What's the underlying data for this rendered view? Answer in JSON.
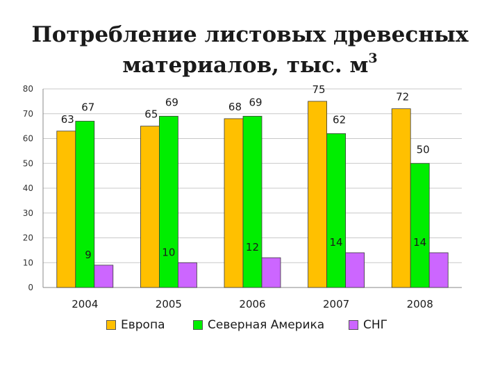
{
  "title": {
    "line1": "Потребление листовых древесных",
    "line2": "материалов, тыс. м",
    "superscript": "3"
  },
  "chart_data": {
    "type": "bar",
    "title": "Потребление листовых древесных материалов, тыс. м3",
    "categories": [
      "2004",
      "2005",
      "2006",
      "2007",
      "2008"
    ],
    "series": [
      {
        "name": "Европа",
        "color": "#FFC000",
        "values": [
          63,
          65,
          68,
          75,
          72
        ]
      },
      {
        "name": "Северная Америка",
        "color": "#00EE00",
        "values": [
          67,
          69,
          69,
          62,
          50
        ]
      },
      {
        "name": "СНГ",
        "color": "#CC66FF",
        "values": [
          9,
          10,
          12,
          14,
          14
        ]
      }
    ],
    "yticks": [
      0,
      10,
      20,
      30,
      40,
      50,
      60,
      70,
      80
    ],
    "ylim": [
      0,
      80
    ],
    "grid": true,
    "legend": "bottom",
    "data_labels": true
  }
}
